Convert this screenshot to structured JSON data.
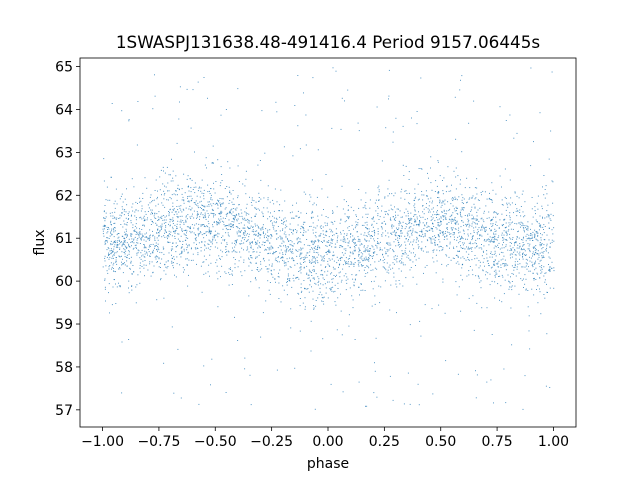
{
  "chart_data": {
    "type": "scatter",
    "title": "1SWASPJ131638.48-491416.4 Period 9157.06445s",
    "xlabel": "phase",
    "ylabel": "flux",
    "xlim": [
      -1.1,
      1.1
    ],
    "ylim": [
      56.6,
      65.2
    ],
    "xticks": [
      "−1.00",
      "−0.75",
      "−0.50",
      "−0.25",
      "0.00",
      "0.25",
      "0.50",
      "0.75",
      "1.00"
    ],
    "xtick_values": [
      -1.0,
      -0.75,
      -0.5,
      -0.25,
      0.0,
      0.25,
      0.5,
      0.75,
      1.0
    ],
    "yticks": [
      "57",
      "58",
      "59",
      "60",
      "61",
      "62",
      "63",
      "64",
      "65"
    ],
    "ytick_values": [
      57,
      58,
      59,
      60,
      61,
      62,
      63,
      64,
      65
    ],
    "grid": false,
    "marker_color": "#1f77b4",
    "series": [
      {
        "phase_range": [
          -1.0,
          1.0
        ],
        "flux_mean_profile": {
          "x": [
            -1.0,
            -0.75,
            -0.6,
            -0.45,
            -0.25,
            -0.05,
            0.05,
            0.25,
            0.4,
            0.55,
            0.75,
            0.95,
            1.0
          ],
          "y": [
            60.8,
            61.2,
            61.4,
            61.3,
            60.9,
            60.6,
            60.6,
            61.0,
            61.4,
            61.3,
            60.9,
            60.7,
            60.8
          ]
        },
        "flux_core_spread": 0.55,
        "flux_range": [
          57.0,
          65.0
        ]
      }
    ]
  }
}
